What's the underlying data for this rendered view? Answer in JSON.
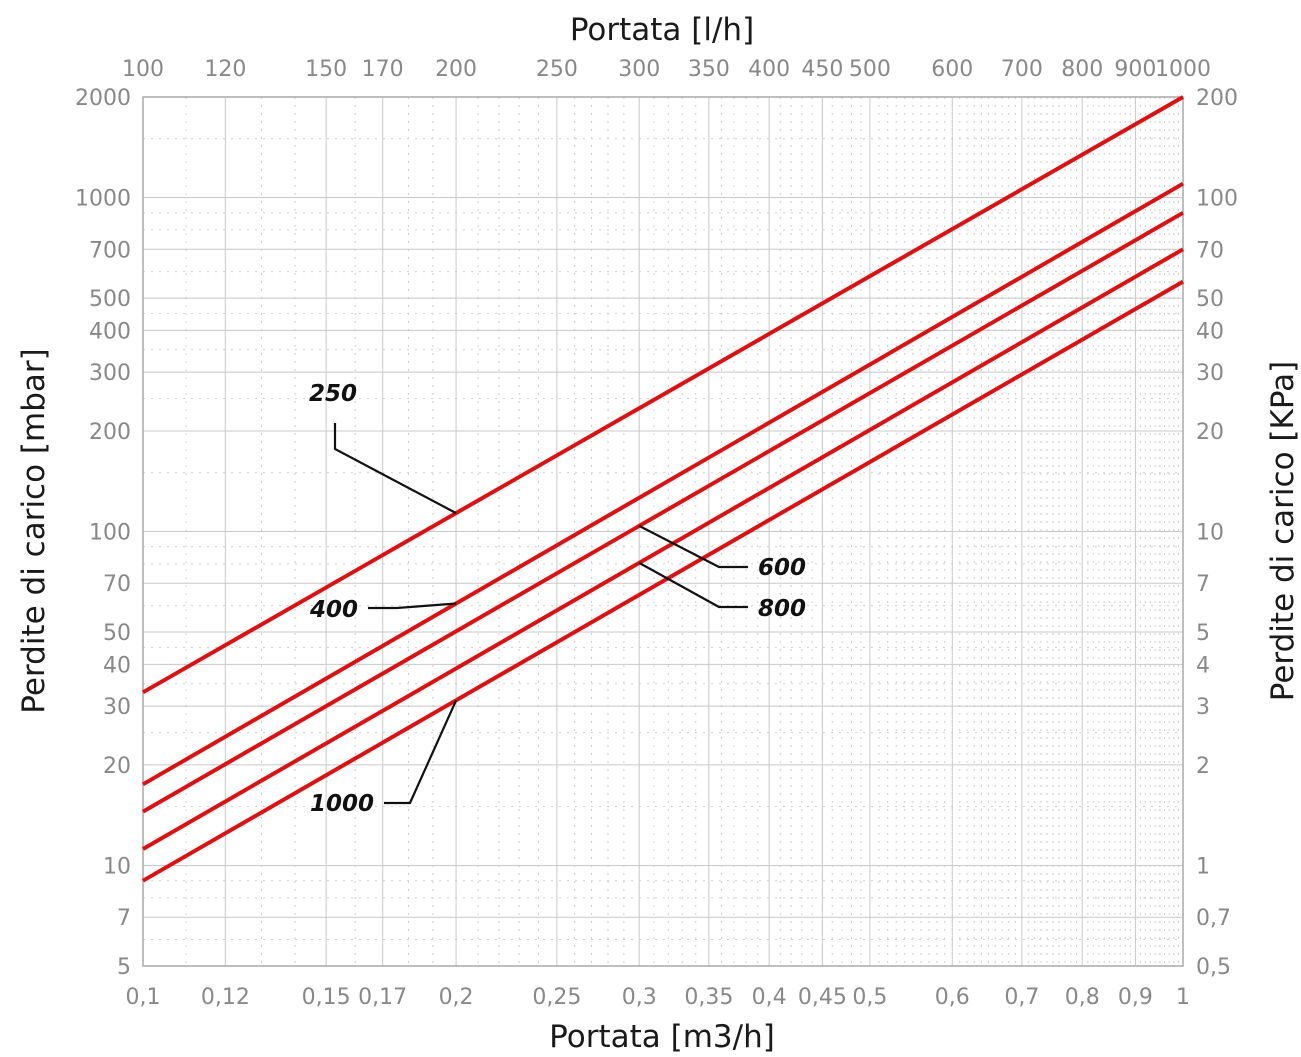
{
  "chart_data": {
    "type": "line",
    "title": "",
    "xscale": "log",
    "yscale": "log",
    "xlabel": "Portata [m3/h]",
    "x2label": "Portata [l/h]",
    "ylabel": "Perdite di carico [mbar]",
    "y2label": "Perdite di carico [KPa]",
    "xlim": [
      0.1,
      1
    ],
    "ylim": [
      5,
      2000
    ],
    "grid": true,
    "line_color": "#dd1111",
    "x_ticks": [
      0.1,
      0.12,
      0.15,
      0.17,
      0.2,
      0.25,
      0.3,
      0.35,
      0.4,
      0.45,
      0.5,
      0.6,
      0.7,
      0.8,
      0.9,
      1
    ],
    "x_tick_labels": [
      "0,1",
      "0,12",
      "0,15",
      "0,17",
      "0,2",
      "0,25",
      "0,3",
      "0,35",
      "0,4",
      "0,45",
      "0,5",
      "0,6",
      "0,7",
      "0,8",
      "0,9",
      "1"
    ],
    "x2_tick_labels": [
      "100",
      "120",
      "150",
      "170",
      "200",
      "250",
      "300",
      "350",
      "400",
      "450",
      "500",
      "600",
      "700",
      "800",
      "900",
      "1000"
    ],
    "y_ticks": [
      5,
      7,
      10,
      20,
      30,
      40,
      50,
      70,
      100,
      200,
      300,
      400,
      500,
      700,
      1000,
      2000
    ],
    "y_tick_labels": [
      "5",
      "7",
      "10",
      "20",
      "30",
      "40",
      "50",
      "70",
      "100",
      "200",
      "300",
      "400",
      "500",
      "700",
      "1000",
      "2000"
    ],
    "y2_tick_labels": [
      "0,5",
      "0,7",
      "1",
      "2",
      "3",
      "4",
      "5",
      "7",
      "10",
      "20",
      "30",
      "40",
      "50",
      "70",
      "100",
      "200"
    ],
    "series": [
      {
        "label": "250",
        "x": [
          0.1,
          1
        ],
        "y": [
          33,
          2000
        ]
      },
      {
        "label": "400",
        "x": [
          0.1,
          1
        ],
        "y": [
          17.5,
          1100
        ]
      },
      {
        "label": "600",
        "x": [
          0.1,
          1
        ],
        "y": [
          14.5,
          900
        ]
      },
      {
        "label": "800",
        "x": [
          0.1,
          1
        ],
        "y": [
          11.2,
          700
        ]
      },
      {
        "label": "1000",
        "x": [
          0.1,
          1
        ],
        "y": [
          9,
          560
        ]
      }
    ]
  }
}
